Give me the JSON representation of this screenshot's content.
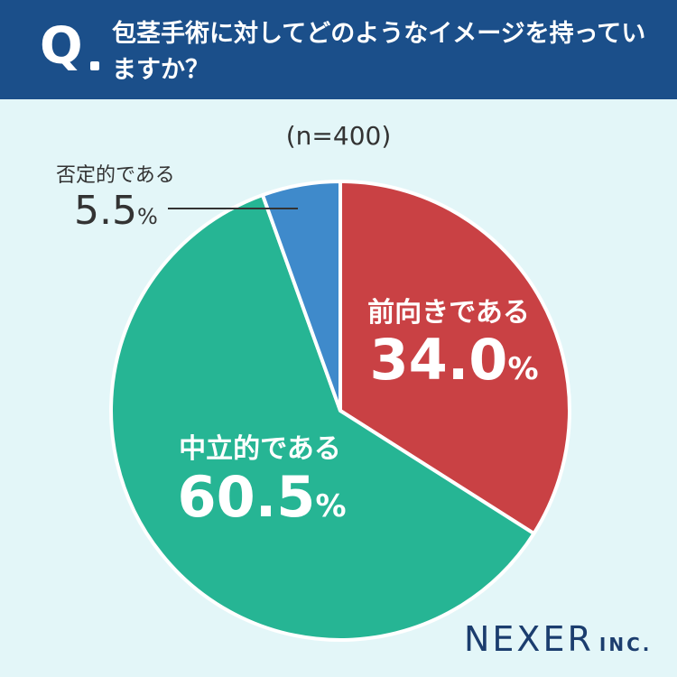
{
  "header": {
    "q_mark": "Q",
    "question": "包茎手術に対してどのようなイメージを持っていますか？"
  },
  "sample_size": "(n=400)",
  "brand": {
    "name": "NEXER",
    "suffix": "INC."
  },
  "colors": {
    "header_bg": "#1b4f8a",
    "background": "#e3f6f8",
    "positive": "#c94144",
    "neutral": "#26b594",
    "negative": "#3f8acb"
  },
  "chart_data": {
    "type": "pie",
    "title": "包茎手術に対してどのようなイメージを持っていますか？",
    "n": 400,
    "start_angle": "12 o'clock",
    "direction": "clockwise",
    "slices": [
      {
        "label": "前向きである",
        "value": 34.0,
        "display": "34.0",
        "unit": "%",
        "color": "#c94144"
      },
      {
        "label": "中立的である",
        "value": 60.5,
        "display": "60.5",
        "unit": "%",
        "color": "#26b594"
      },
      {
        "label": "否定的である",
        "value": 5.5,
        "display": "5.5",
        "unit": "%",
        "color": "#3f8acb"
      }
    ]
  }
}
